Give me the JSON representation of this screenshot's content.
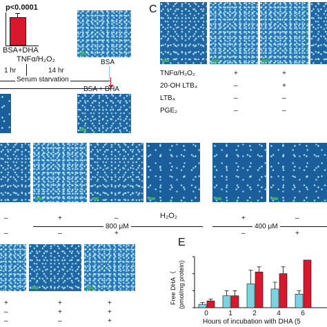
{
  "panel_a": {
    "inset_pvalue": "p<0.0001",
    "inset_label": "BSA+DHA",
    "treatment": "TNFα/H₂O₂",
    "time_1": "1 hr",
    "time_2": "14 hr",
    "serum_starvation": "Serum starvation",
    "bsa_label": "BSA",
    "bsa_dha_label": "BSA + DHA"
  },
  "panel_c": {
    "letter": "C",
    "rows": [
      {
        "label": "TNFα/H₂O₂",
        "values": [
          "+",
          "+"
        ]
      },
      {
        "label": "20-OH LTB₄",
        "values": [
          "–",
          "+"
        ]
      },
      {
        "label": "LTB₄",
        "values": [
          "–",
          "–"
        ]
      },
      {
        "label": "PGE₂",
        "values": [
          "–",
          "–"
        ]
      }
    ]
  },
  "panel_d": {
    "row1": [
      "–",
      "+",
      "–",
      "–",
      "+",
      "–"
    ],
    "row2": [
      "–",
      "–",
      "+",
      "–",
      "–",
      "+"
    ],
    "conc_800": "800 μM",
    "h2o2": "H₂O₂",
    "conc_400": "400 μM",
    "row1_right": [
      "+",
      "–"
    ],
    "row2_right": [
      "–",
      "+"
    ]
  },
  "panel_bottom_left": {
    "row1": [
      "+",
      "+",
      "+"
    ],
    "row2": [
      "–",
      "+",
      "+"
    ],
    "row3": [
      "–",
      "–",
      "+"
    ]
  },
  "panel_e": {
    "letter": "E",
    "ylabel_1": "Free DHA（",
    "ylabel_2": "(pmol/mg protein)",
    "xlabel": "Hours of incubation with DHA (5",
    "colors": {
      "cyan": "#7fd3e0",
      "red": "#d8182c"
    }
  },
  "chart_data": {
    "type": "bar",
    "categories": [
      "0",
      "1",
      "2",
      "4",
      "6"
    ],
    "series": [
      {
        "color": "#7fd3e0",
        "values": [
          2,
          7,
          14,
          11,
          8
        ]
      },
      {
        "color": "#d8182c",
        "values": [
          4,
          7,
          21,
          20,
          28
        ]
      }
    ],
    "errors": [
      [
        1,
        3,
        8,
        4,
        2
      ],
      [
        1,
        3,
        3,
        4,
        0
      ]
    ],
    "ylim": [
      0,
      30
    ],
    "yticks": [
      0,
      10,
      20,
      30
    ],
    "xlabel": "Hours of incubation with DHA (5",
    "ylabel": "Free DHA（ (pmol/mg protein)"
  }
}
